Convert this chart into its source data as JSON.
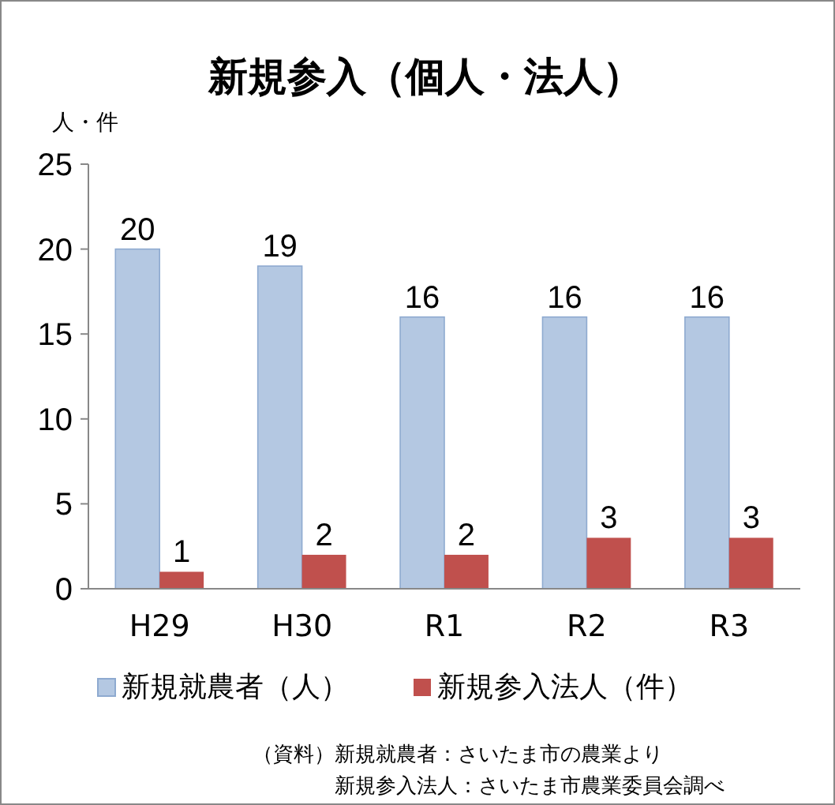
{
  "chart_data": {
    "type": "bar",
    "title": "新規参入（個人・法人）",
    "ylabel": "人・件",
    "categories": [
      "H29",
      "H30",
      "R1",
      "R2",
      "R3"
    ],
    "series": [
      {
        "name": "新規就農者（人）",
        "color": "#b4c8e2",
        "values": [
          20,
          19,
          16,
          16,
          16
        ]
      },
      {
        "name": "新規参入法人（件）",
        "color": "#c0504d",
        "values": [
          1,
          2,
          2,
          3,
          3
        ]
      }
    ],
    "ylim": [
      0,
      25
    ],
    "yticks": [
      0,
      5,
      10,
      15,
      20,
      25
    ],
    "data_labels": true,
    "legend": "bottom",
    "grid": false,
    "annotations": [
      "（資料）新規就農者：さいたま市の農業より",
      "新規参入法人：さいたま市農業委員会調べ"
    ]
  }
}
